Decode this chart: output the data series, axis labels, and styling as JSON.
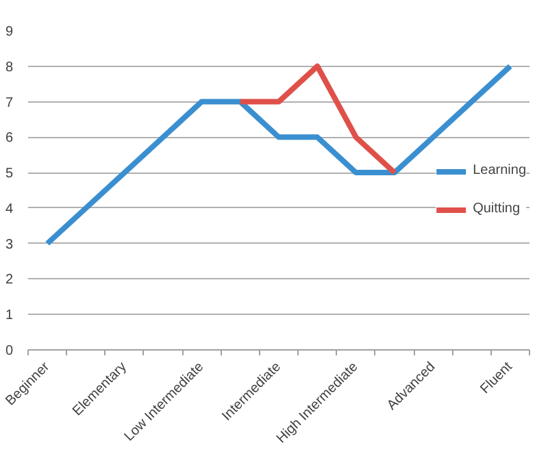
{
  "chart_data": {
    "type": "line",
    "categories": [
      "Beginner",
      null,
      "Elementary",
      null,
      "Low Intermediate",
      null,
      "Intermediate",
      null,
      "High Intermediate",
      null,
      "Advanced",
      null,
      "Fluent"
    ],
    "series": [
      {
        "name": "Learning",
        "color": "#3a8fd0",
        "values": [
          3,
          4,
          5,
          6,
          7,
          7,
          6,
          6,
          5,
          5,
          6,
          7,
          8
        ]
      },
      {
        "name": "Quitting",
        "color": "#e0504a",
        "values": [
          null,
          null,
          null,
          null,
          null,
          7,
          7,
          8,
          6,
          5,
          null,
          null,
          null
        ]
      }
    ],
    "ylim": [
      0,
      9
    ],
    "yticks": [
      0,
      1,
      2,
      3,
      4,
      5,
      6,
      7,
      8,
      9
    ],
    "grid": "y",
    "legend": "right",
    "marker": "none",
    "line_style": "solid"
  }
}
